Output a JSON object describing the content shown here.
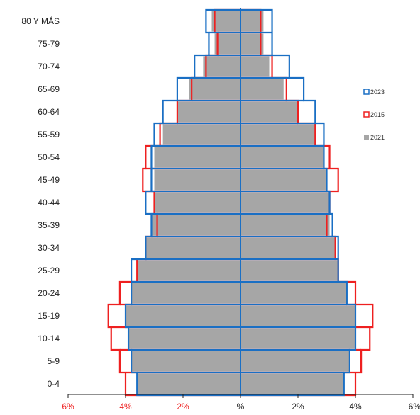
{
  "chart_data": {
    "type": "bar",
    "orientation": "horizontal",
    "chart_kind": "population-pyramid",
    "categories": [
      "0-4",
      "5-9",
      "10-14",
      "15-19",
      "20-24",
      "25-29",
      "30-34",
      "35-39",
      "40-44",
      "45-49",
      "50-54",
      "55-59",
      "60-64",
      "65-69",
      "70-74",
      "75-79",
      "80 Y MÁS"
    ],
    "x_ticks": [
      {
        "value": -6,
        "label": "6%"
      },
      {
        "value": -4,
        "label": "4%"
      },
      {
        "value": -2,
        "label": "2%"
      },
      {
        "value": 0,
        "label": "%"
      },
      {
        "value": 2,
        "label": "2%"
      },
      {
        "value": 4,
        "label": "4%"
      },
      {
        "value": 6,
        "label": "6%"
      }
    ],
    "xlim": [
      -6,
      6
    ],
    "grid": false,
    "legend_position": "right",
    "series": [
      {
        "name": "2021",
        "style": "filled-bar",
        "color": "#a6a6a6",
        "left": [
          3.6,
          3.8,
          3.9,
          4.0,
          3.8,
          3.6,
          3.3,
          3.1,
          3.0,
          3.0,
          3.0,
          2.7,
          2.2,
          1.8,
          1.3,
          0.9,
          1.0
        ],
        "right": [
          3.6,
          3.8,
          4.0,
          4.0,
          3.7,
          3.4,
          3.3,
          3.1,
          3.1,
          3.0,
          2.9,
          2.6,
          2.0,
          1.5,
          1.0,
          0.8,
          0.8
        ]
      },
      {
        "name": "2023",
        "style": "outline",
        "color": "#1a6fc4",
        "left": [
          3.6,
          3.8,
          3.9,
          4.0,
          3.8,
          3.8,
          3.3,
          3.1,
          3.3,
          3.1,
          3.1,
          3.0,
          2.7,
          2.2,
          1.6,
          1.1,
          1.2
        ],
        "right": [
          3.6,
          3.8,
          4.0,
          4.0,
          3.7,
          3.4,
          3.4,
          3.2,
          3.1,
          3.0,
          2.9,
          2.9,
          2.6,
          2.2,
          1.7,
          1.1,
          1.1
        ]
      },
      {
        "name": "2015",
        "style": "outline",
        "color": "#ee2020",
        "left": [
          4.0,
          4.2,
          4.5,
          4.6,
          4.2,
          3.6,
          3.3,
          2.9,
          3.0,
          3.4,
          3.3,
          2.8,
          2.2,
          1.7,
          1.2,
          0.8,
          0.9
        ],
        "right": [
          4.0,
          4.2,
          4.5,
          4.6,
          4.0,
          3.4,
          3.3,
          3.0,
          3.1,
          3.4,
          3.1,
          2.6,
          2.0,
          1.6,
          1.1,
          0.7,
          0.7
        ]
      }
    ],
    "legend_order": [
      "2023",
      "2015",
      "2021"
    ],
    "colors": {
      "left_tick": "#ee2020",
      "right_tick": "#222222",
      "axis": "#222222",
      "center_line": "#1a6fc4"
    }
  }
}
